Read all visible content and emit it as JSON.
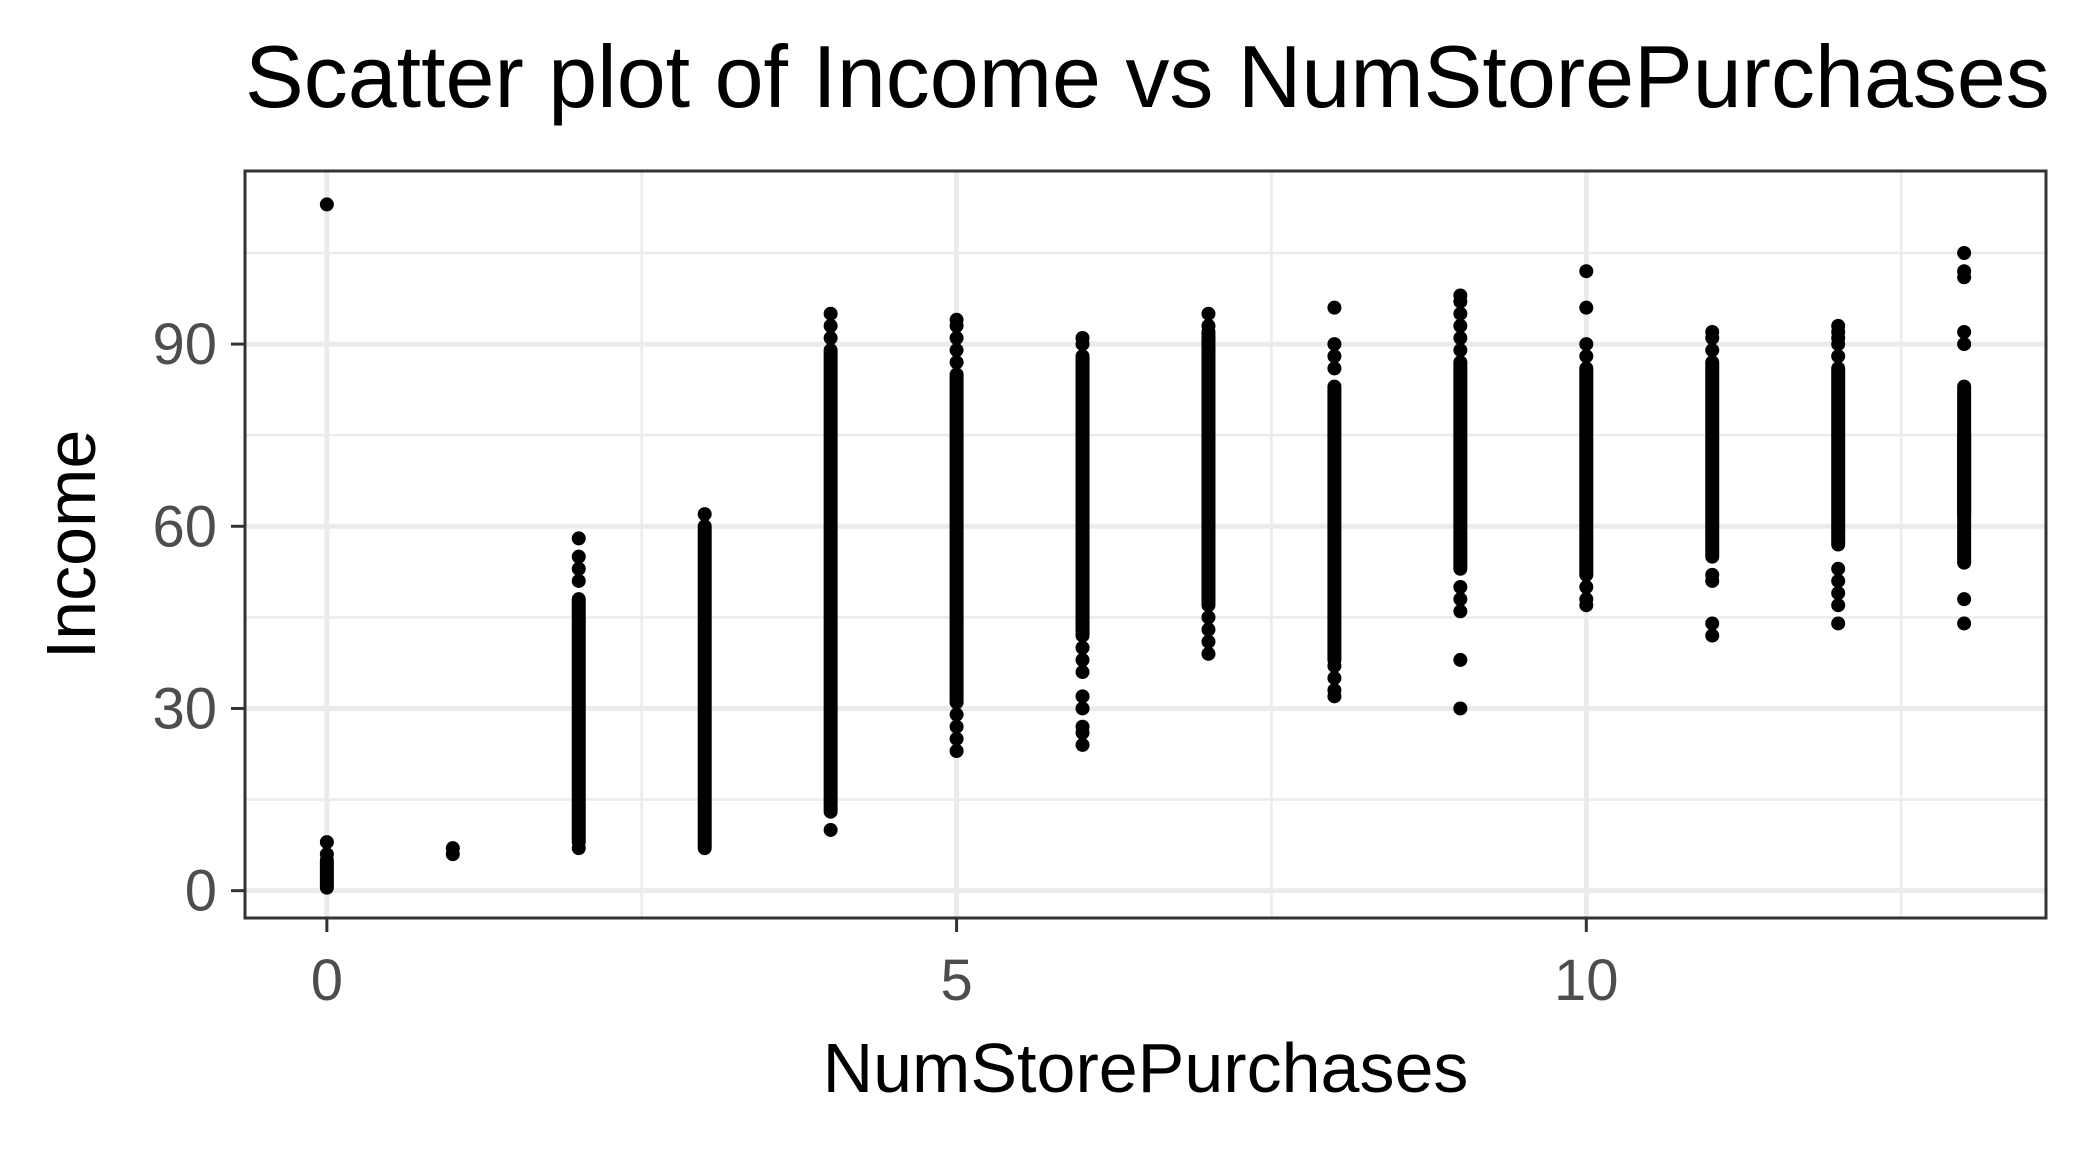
{
  "chart_data": {
    "type": "scatter",
    "title": "Scatter plot of Income vs NumStorePurchases",
    "xlabel": "NumStorePurchases",
    "ylabel": "Income",
    "xlim": [
      -0.65,
      13.65
    ],
    "ylim": [
      -4.5,
      118.5
    ],
    "x_ticks": [
      0,
      5,
      10
    ],
    "x_tick_labels": [
      "0",
      "5",
      "10"
    ],
    "y_ticks": [
      0,
      30,
      60,
      90
    ],
    "y_tick_labels": [
      "0",
      "30",
      "60",
      "90"
    ],
    "grid": true,
    "legend": "none",
    "point_color": "#000000",
    "columns": [
      {
        "x": 0,
        "runs": [
          [
            0.5,
            5
          ]
        ],
        "points": [
          6,
          8,
          113
        ]
      },
      {
        "x": 1,
        "runs": [],
        "points": [
          6,
          7
        ]
      },
      {
        "x": 2,
        "runs": [
          [
            8,
            48
          ]
        ],
        "points": [
          7,
          51,
          53,
          55,
          58
        ]
      },
      {
        "x": 3,
        "runs": [
          [
            7,
            60
          ]
        ],
        "points": [
          62
        ]
      },
      {
        "x": 4,
        "runs": [
          [
            13,
            89
          ]
        ],
        "points": [
          10,
          91,
          93,
          95
        ]
      },
      {
        "x": 5,
        "runs": [
          [
            31,
            85
          ]
        ],
        "points": [
          23,
          25,
          27,
          29,
          87,
          89,
          91,
          93,
          94
        ]
      },
      {
        "x": 6,
        "runs": [
          [
            42,
            88
          ]
        ],
        "points": [
          24,
          26,
          27,
          30,
          32,
          36,
          38,
          40,
          90,
          91
        ]
      },
      {
        "x": 7,
        "runs": [
          [
            47,
            92
          ]
        ],
        "points": [
          39,
          41,
          43,
          45,
          93,
          95
        ]
      },
      {
        "x": 8,
        "runs": [
          [
            38,
            83
          ]
        ],
        "points": [
          32,
          33,
          35,
          37,
          86,
          88,
          90,
          96
        ]
      },
      {
        "x": 9,
        "runs": [
          [
            53,
            87
          ]
        ],
        "points": [
          30,
          38,
          46,
          48,
          50,
          89,
          91,
          93,
          95,
          97,
          98
        ]
      },
      {
        "x": 10,
        "runs": [
          [
            52,
            86
          ]
        ],
        "points": [
          47,
          48,
          50,
          88,
          90,
          96,
          102
        ]
      },
      {
        "x": 11,
        "runs": [
          [
            55,
            87
          ]
        ],
        "points": [
          42,
          44,
          51,
          52,
          89,
          91,
          92
        ]
      },
      {
        "x": 12,
        "runs": [
          [
            57,
            86
          ]
        ],
        "points": [
          44,
          47,
          49,
          51,
          53,
          88,
          90,
          91,
          92,
          93
        ]
      },
      {
        "x": 13,
        "runs": [
          [
            54,
            75
          ],
          [
            62,
            83
          ]
        ],
        "points": [
          44,
          48,
          90,
          92,
          101,
          102,
          105
        ]
      }
    ]
  }
}
